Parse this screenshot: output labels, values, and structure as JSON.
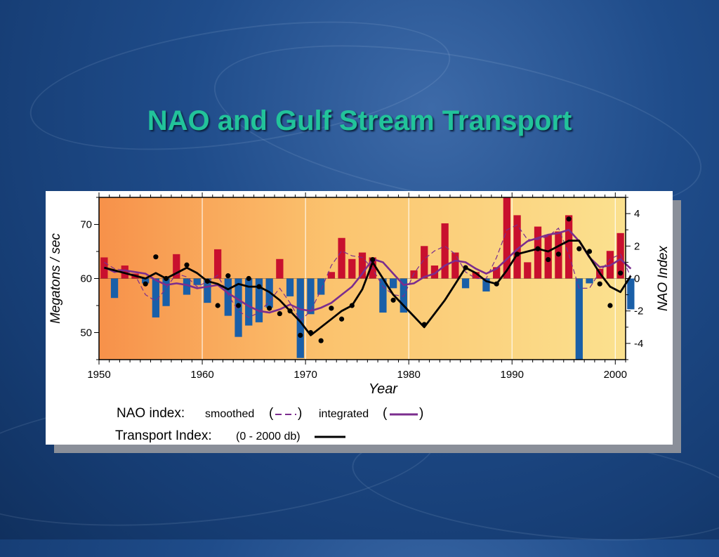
{
  "slide": {
    "title": "NAO and Gulf Stream Transport"
  },
  "legend": {
    "nao_label": "NAO index:",
    "smoothed_label": "smoothed",
    "integrated_label": "integrated",
    "transport_label": "Transport Index:",
    "transport_depth": "(0 - 2000 db)"
  },
  "colors": {
    "positive_bar": "#c8102e",
    "negative_bar": "#1a5fa8",
    "smoothed_line": "#7b2d8e",
    "integrated_line": "#7b2d8e",
    "transport_line": "#000000",
    "title": "#22c39a",
    "bg_left": "#f7914a",
    "bg_right": "#fbe18f"
  },
  "chart_data": {
    "type": "bar",
    "xlabel": "Year",
    "ylabel": "Megatons / sec",
    "y2label": "NAO Index",
    "xlim": [
      1950,
      2001
    ],
    "ylim": [
      45,
      75
    ],
    "y2lim": [
      -5,
      5
    ],
    "xticks": [
      "1950",
      "1960",
      "1970",
      "1980",
      "1990",
      "2000"
    ],
    "yticks": [
      "50",
      "60",
      "70"
    ],
    "y2ticks": [
      "4",
      "2",
      "0",
      "-2",
      "-4"
    ],
    "grid": "vertical at decades",
    "nao_index_bars": {
      "name": "NAO index",
      "years": [
        1950,
        1951,
        1952,
        1953,
        1954,
        1955,
        1956,
        1957,
        1958,
        1959,
        1960,
        1961,
        1962,
        1963,
        1964,
        1965,
        1966,
        1967,
        1968,
        1969,
        1970,
        1971,
        1972,
        1973,
        1974,
        1975,
        1976,
        1977,
        1978,
        1979,
        1980,
        1981,
        1982,
        1983,
        1984,
        1985,
        1986,
        1987,
        1988,
        1989,
        1990,
        1991,
        1992,
        1993,
        1994,
        1995,
        1996,
        1997,
        1998,
        1999,
        2000,
        2001
      ],
      "values": [
        1.3,
        -1.2,
        0.8,
        0.3,
        -0.3,
        -2.4,
        -1.7,
        1.5,
        -1.0,
        -0.4,
        -1.5,
        1.8,
        -2.3,
        -3.6,
        -2.9,
        -2.7,
        -1.8,
        1.2,
        -1.1,
        -4.9,
        -2.2,
        -1.0,
        0.4,
        2.5,
        1.2,
        1.6,
        1.3,
        -2.1,
        -0.6,
        -2.1,
        0.5,
        2.0,
        0.8,
        3.4,
        1.6,
        -0.6,
        0.4,
        -0.8,
        0.7,
        5.0,
        3.9,
        1.0,
        3.2,
        2.7,
        2.9,
        3.9,
        -5.0,
        -0.3,
        0.6,
        1.7,
        2.8,
        -1.9
      ]
    },
    "transport_index": {
      "name": "Transport Index",
      "years": [
        1950,
        1951,
        1952,
        1953,
        1954,
        1955,
        1956,
        1957,
        1958,
        1959,
        1960,
        1961,
        1962,
        1963,
        1964,
        1965,
        1966,
        1967,
        1968,
        1969,
        1970,
        1971,
        1972,
        1973,
        1974,
        1975,
        1976,
        1977,
        1978,
        1979,
        1980,
        1981,
        1982,
        1983,
        1984,
        1985,
        1986,
        1987,
        1988,
        1989,
        1990,
        1991,
        1992,
        1993,
        1994,
        1995,
        1996,
        1997,
        1998,
        1999,
        2000,
        2001
      ],
      "values": [
        62,
        61.5,
        61,
        60.5,
        60,
        61,
        60,
        61,
        62,
        61,
        59.5,
        59,
        58,
        59,
        58.5,
        58.5,
        57.5,
        56,
        54,
        52,
        49.5,
        51,
        52.5,
        54,
        55,
        58,
        63,
        60,
        57,
        55,
        53,
        51,
        53.5,
        56,
        59,
        62,
        61,
        59.5,
        59,
        61.5,
        64.5,
        65,
        65.5,
        65,
        66,
        67,
        67,
        64,
        61,
        58.5,
        57.5,
        60.5
      ]
    },
    "integrated_nao": {
      "name": "integrated",
      "years": [
        1950,
        1951,
        1952,
        1953,
        1954,
        1955,
        1956,
        1957,
        1958,
        1959,
        1960,
        1961,
        1962,
        1963,
        1964,
        1965,
        1966,
        1967,
        1968,
        1969,
        1970,
        1971,
        1972,
        1973,
        1974,
        1975,
        1976,
        1977,
        1978,
        1979,
        1980,
        1981,
        1982,
        1983,
        1984,
        1985,
        1986,
        1987,
        1988,
        1989,
        1990,
        1991,
        1992,
        1993,
        1994,
        1995,
        1996,
        1997,
        1998,
        1999,
        2000,
        2001
      ],
      "values": [
        0.7,
        0.4,
        0.5,
        0.4,
        0.3,
        -0.1,
        -0.4,
        -0.3,
        -0.4,
        -0.6,
        -0.5,
        -0.4,
        -0.9,
        -1.3,
        -1.7,
        -2.0,
        -2.1,
        -1.9,
        -1.6,
        -1.9,
        -2.0,
        -1.8,
        -1.5,
        -1.0,
        -0.5,
        0.3,
        1.2,
        1.0,
        0.3,
        -0.4,
        -0.3,
        0.1,
        0.3,
        0.8,
        1.1,
        1.0,
        0.6,
        0.3,
        0.6,
        1.2,
        1.8,
        2.3,
        2.5,
        2.7,
        2.8,
        3.0,
        2.3,
        1.3,
        0.7,
        0.8,
        1.2,
        0.6
      ]
    },
    "smoothed_nao": {
      "name": "smoothed",
      "years": [
        1950,
        1951,
        1952,
        1953,
        1954,
        1955,
        1956,
        1957,
        1958,
        1959,
        1960,
        1961,
        1962,
        1963,
        1964,
        1965,
        1966,
        1967,
        1968,
        1969,
        1970,
        1971,
        1972,
        1973,
        1974,
        1975,
        1976,
        1977,
        1978,
        1979,
        1980,
        1981,
        1982,
        1983,
        1984,
        1985,
        1986,
        1987,
        1988,
        1989,
        1990,
        1991,
        1992,
        1993,
        1994,
        1995,
        1996,
        1997,
        1998,
        1999,
        2000,
        2001
      ],
      "values": [
        1.0,
        0.6,
        0.5,
        0.2,
        -1.0,
        -1.4,
        -0.6,
        0.3,
        0.1,
        -0.5,
        -0.2,
        0.2,
        -1.0,
        -2.0,
        -2.4,
        -2.1,
        -1.4,
        -0.6,
        -1.5,
        -2.6,
        -2.0,
        -0.7,
        0.8,
        1.7,
        1.4,
        1.3,
        0.6,
        -0.5,
        -1.0,
        -1.1,
        0.3,
        1.2,
        1.7,
        2.0,
        1.5,
        0.4,
        0.0,
        0.0,
        1.3,
        3.0,
        3.3,
        2.4,
        2.4,
        2.6,
        3.1,
        1.5,
        -0.6,
        -0.6,
        0.4,
        1.2,
        1.5,
        0.1
      ]
    },
    "transport_observations": {
      "name": "Transport Index observations",
      "years": [
        1954,
        1955,
        1956,
        1958,
        1960,
        1961,
        1962,
        1963,
        1964,
        1965,
        1966,
        1967,
        1968,
        1969,
        1970,
        1971,
        1972,
        1973,
        1974,
        1976,
        1978,
        1981,
        1985,
        1988,
        1990,
        1992,
        1993,
        1994,
        1995,
        1996,
        1997,
        1998,
        1999,
        2000
      ],
      "values": [
        59,
        64,
        60,
        62.5,
        59.5,
        55,
        60.5,
        55,
        60,
        58.5,
        54.5,
        53.5,
        54,
        49.5,
        50,
        48.5,
        54.5,
        52.5,
        55,
        63.5,
        56,
        51.5,
        62,
        59,
        64.5,
        65.5,
        63.5,
        64.5,
        71,
        65.5,
        65,
        59,
        55,
        61
      ]
    }
  }
}
